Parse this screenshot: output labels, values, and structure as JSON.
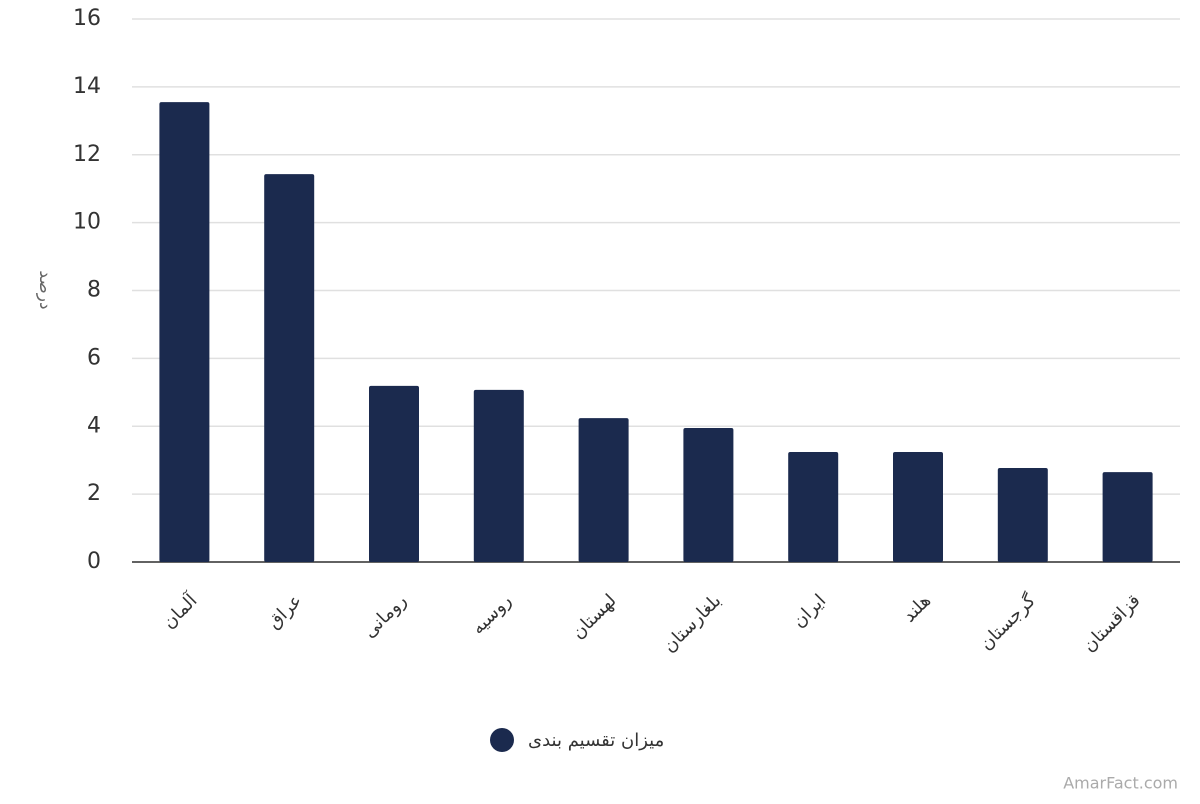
{
  "chart_data": {
    "type": "bar",
    "y_label": "درصد",
    "categories": [
      "آلمان",
      "عراق",
      "رومانی",
      "روسیه",
      "لهستان",
      "بلغارستان",
      "ایران",
      "هلند",
      "گرجستان",
      "قزاقستان"
    ],
    "series": [
      {
        "name": "میزان تقسیم بندی",
        "color": "#1b2a4e",
        "values": [
          13.55,
          11.43,
          5.19,
          5.07,
          4.24,
          3.95,
          3.24,
          3.24,
          2.77,
          2.65
        ]
      }
    ],
    "ylim": [
      0,
      16
    ],
    "yticks": [
      0,
      2,
      4,
      6,
      8,
      10,
      12,
      14,
      16
    ],
    "grid": true,
    "legend": "bottom",
    "watermark": "AmarFact.com"
  }
}
